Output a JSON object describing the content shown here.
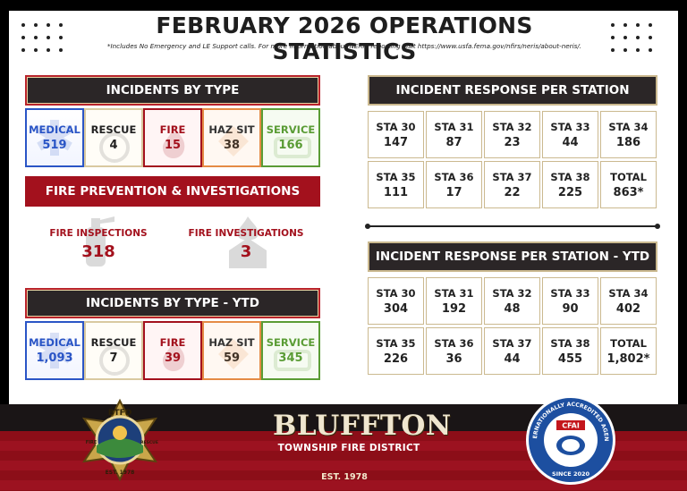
{
  "title": "FEBRUARY 2026 OPERATIONS STATISTICS",
  "subtitle": "*Includes No Emergency and LE Support calls. For more information about NERIS reporting visit https://www.usfa.fema.gov/nfirs/neris/about-neris/.",
  "incidents_by_type": {
    "heading": "INCIDENTS BY TYPE",
    "items": [
      {
        "label": "MEDICAL",
        "value": "519"
      },
      {
        "label": "RESCUE",
        "value": "4"
      },
      {
        "label": "FIRE",
        "value": "15"
      },
      {
        "label": "HAZ SIT",
        "value": "38"
      },
      {
        "label": "SERVICE",
        "value": "166"
      }
    ]
  },
  "fire_prevention": {
    "heading": "FIRE PREVENTION & INVESTIGATIONS",
    "inspections_label": "FIRE INSPECTIONS",
    "inspections_value": "318",
    "investigations_label": "FIRE INVESTIGATIONS",
    "investigations_value": "3"
  },
  "incidents_by_type_ytd": {
    "heading": "INCIDENTS BY TYPE - YTD",
    "items": [
      {
        "label": "MEDICAL",
        "value": "1,093"
      },
      {
        "label": "RESCUE",
        "value": "7"
      },
      {
        "label": "FIRE",
        "value": "39"
      },
      {
        "label": "HAZ SIT",
        "value": "59"
      },
      {
        "label": "SERVICE",
        "value": "345"
      }
    ]
  },
  "response_per_station": {
    "heading": "INCIDENT RESPONSE PER STATION",
    "cells": [
      {
        "label": "STA 30",
        "value": "147"
      },
      {
        "label": "STA 31",
        "value": "87"
      },
      {
        "label": "STA 32",
        "value": "23"
      },
      {
        "label": "STA 33",
        "value": "44"
      },
      {
        "label": "STA 34",
        "value": "186"
      },
      {
        "label": "STA 35",
        "value": "111"
      },
      {
        "label": "STA 36",
        "value": "17"
      },
      {
        "label": "STA 37",
        "value": "22"
      },
      {
        "label": "STA 38",
        "value": "225"
      },
      {
        "label": "TOTAL",
        "value": "863*"
      }
    ]
  },
  "response_per_station_ytd": {
    "heading": "INCIDENT RESPONSE PER STATION - YTD",
    "cells": [
      {
        "label": "STA 30",
        "value": "304"
      },
      {
        "label": "STA 31",
        "value": "192"
      },
      {
        "label": "STA 32",
        "value": "48"
      },
      {
        "label": "STA 33",
        "value": "90"
      },
      {
        "label": "STA 34",
        "value": "402"
      },
      {
        "label": "STA 35",
        "value": "226"
      },
      {
        "label": "STA 36",
        "value": "36"
      },
      {
        "label": "STA 37",
        "value": "44"
      },
      {
        "label": "STA 38",
        "value": "455"
      },
      {
        "label": "TOTAL",
        "value": "1,802*"
      }
    ]
  },
  "footer": {
    "brand_name": "BLUFFTON",
    "brand_sub": "TOWNSHIP FIRE DISTRICT",
    "brand_est": "EST. 1978",
    "badge_top": "BTFD",
    "badge_left": "FIRE",
    "badge_right": "RESCUE",
    "badge_est": "EST. 1978",
    "seal_ring": "INTERNATIONALLY ACCREDITED AGENCY",
    "seal_center": "CFAI",
    "seal_since": "SINCE 2020"
  },
  "colors": {
    "red": "#a3111d",
    "dark": "#2b2627",
    "medical": "#2a55c6",
    "service": "#5a9c35",
    "hazsit": "#e58b45",
    "gold": "#cbb98f"
  },
  "icons": [
    "medical-star-icon",
    "rescue-hand-icon",
    "fire-flame-icon",
    "hazmat-icon",
    "service-icon",
    "fire-extinguisher-icon",
    "house-fire-icon",
    "maltese-cross-badge-icon",
    "accreditation-seal-icon"
  ]
}
